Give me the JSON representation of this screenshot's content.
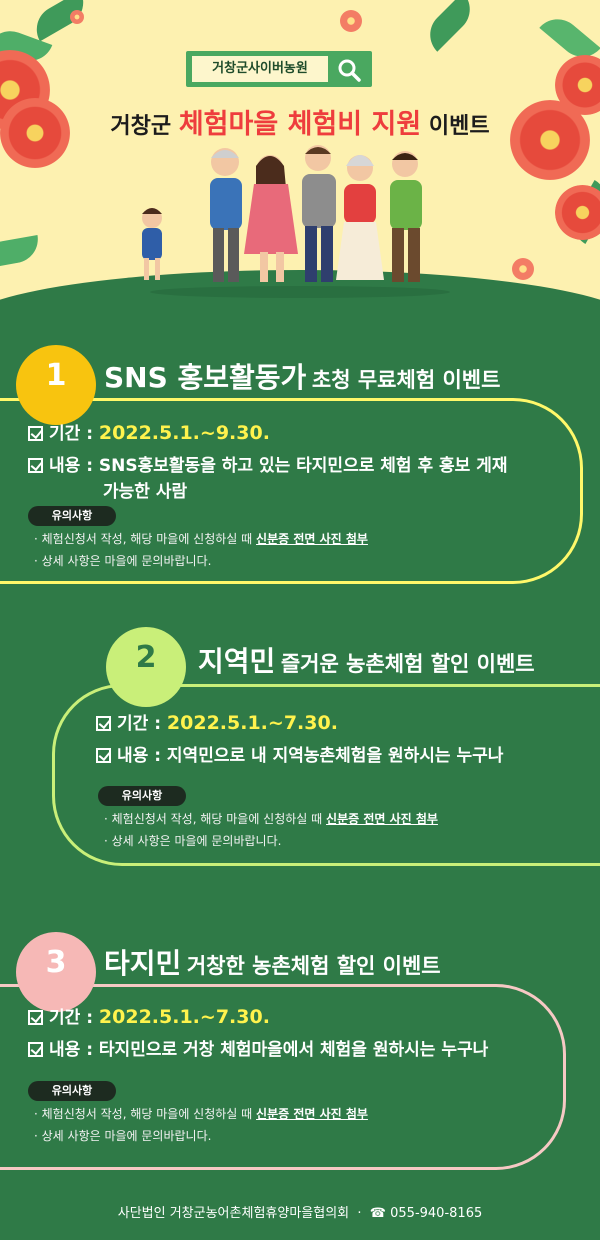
{
  "hero": {
    "search_label": "거창군사이버농원",
    "title_prefix": "거창군",
    "title_accent": "체험마을 체험비 지원",
    "title_suffix": "이벤트"
  },
  "sections": [
    {
      "number": "1",
      "title_big": "SNS 홍보활동가",
      "title_small": "초청 무료체험 이벤트",
      "period_label": "기간 :",
      "period_value": "2022.5.1.~9.30.",
      "content_label": "내용 :",
      "content_line1": "SNS홍보활동을 하고 있는 타지민으로 체험 후 홍보 게재",
      "content_line2": "가능한 사람",
      "note_tag": "유의사항",
      "note1_prefix": "· 체험신청서 작성, 해당 마을에 신청하실 때",
      "note1_emph": "신분증 전면 사진 첨부",
      "note2": "· 상세 사항은 마을에 문의바랍니다."
    },
    {
      "number": "2",
      "title_big": "지역민",
      "title_small": "즐거운 농촌체험 할인 이벤트",
      "period_label": "기간 :",
      "period_value": "2022.5.1.~7.30.",
      "content_label": "내용 :",
      "content_line1": "지역민으로 내 지역농촌체험을 원하시는 누구나",
      "note_tag": "유의사항",
      "note1_prefix": "· 체험신청서 작성, 해당 마을에 신청하실 때",
      "note1_emph": "신분증 전면 사진 첨부",
      "note2": "· 상세 사항은 마을에 문의바랍니다."
    },
    {
      "number": "3",
      "title_big": "타지민",
      "title_small": "거창한 농촌체험 할인 이벤트",
      "period_label": "기간 :",
      "period_value": "2022.5.1.~7.30.",
      "content_label": "내용 :",
      "content_line1": "타지민으로 거창 체험마을에서 체험을 원하시는 누구나",
      "note_tag": "유의사항",
      "note1_prefix": "· 체험신청서 작성, 해당 마을에 신청하실 때",
      "note1_emph": "신분증 전면 사진 첨부",
      "note2": "· 상세 사항은 마을에 문의바랍니다."
    }
  ],
  "footer": {
    "org": "사단법인 거창군농어촌체험휴양마을협의회",
    "separator": "·",
    "phone_icon": "☎",
    "phone": "055-940-8165"
  },
  "colors": {
    "background": "#2f7a47",
    "hero_bg": "#fdf1b0",
    "accent_red": "#ee3d3d",
    "date_yellow": "#fff34d",
    "badge1": "#f8c40f",
    "badge2": "#c9ef79",
    "badge3": "#f6b8b6",
    "card1_border": "#fff86a",
    "card2_border": "#c9ef79",
    "card3_border": "#f6c9c4"
  },
  "icons": [
    "search-icon",
    "check-icon",
    "phone-icon",
    "flower-decoration",
    "leaf-decoration",
    "family-illustration"
  ]
}
